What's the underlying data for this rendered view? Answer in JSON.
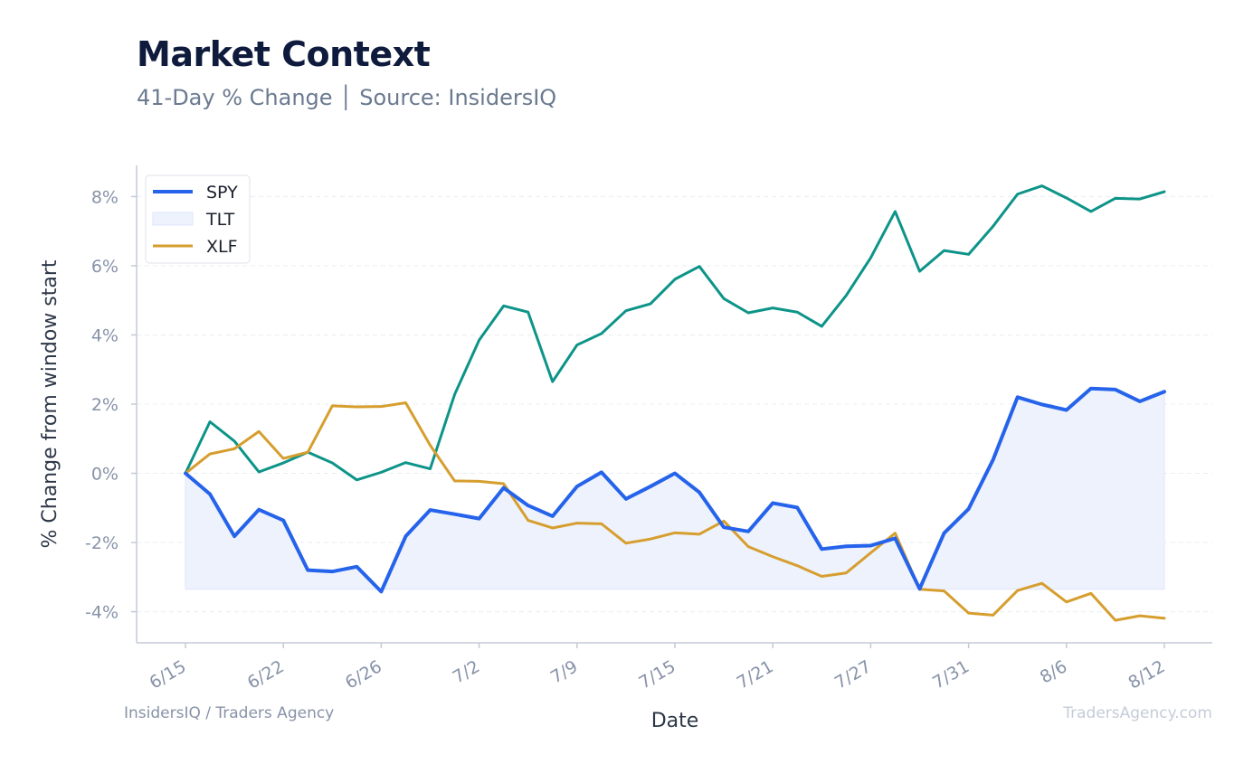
{
  "header": {
    "title": "Market Context",
    "subtitle": "41-Day % Change │ Source: InsidersIQ"
  },
  "footer": {
    "left": "InsidersIQ / Traders Agency",
    "right": "TradersAgency.com"
  },
  "colors": {
    "spy": "#2563eb",
    "tlt": "#0d9488",
    "xlf": "#d69e2e",
    "fill": "#eef2fd",
    "grid": "#e8ecf2",
    "axis": "#c3cad6"
  },
  "chart_data": {
    "type": "line",
    "xlabel": "Date",
    "ylabel": "% Change from window start",
    "ylim": [
      -4.9,
      8.9
    ],
    "yticks": [
      -4,
      -2,
      0,
      2,
      4,
      6,
      8
    ],
    "ytick_labels": [
      "-4%",
      "-2%",
      "0%",
      "2%",
      "4%",
      "6%",
      "8%"
    ],
    "xtick_labels": [
      "6/15",
      "6/22",
      "6/26",
      "7/2",
      "7/9",
      "7/15",
      "7/21",
      "7/27",
      "7/31",
      "8/6",
      "8/12"
    ],
    "xtick_index": [
      0,
      4,
      8,
      12,
      16,
      20,
      24,
      28,
      32,
      36,
      40
    ],
    "grid": true,
    "legend": {
      "placement": "top-left",
      "entries": [
        "SPY",
        "TLT",
        "XLF"
      ]
    },
    "fill_baseline": -3.35,
    "series": [
      {
        "name": "SPY",
        "values": [
          0.0,
          -0.6,
          -1.82,
          -1.05,
          -1.36,
          -2.8,
          -2.84,
          -2.7,
          -3.42,
          -1.82,
          -1.06,
          -1.18,
          -1.31,
          -0.42,
          -0.93,
          -1.24,
          -0.38,
          0.03,
          -0.74,
          -0.38,
          0.0,
          -0.55,
          -1.56,
          -1.68,
          -0.86,
          -0.99,
          -2.19,
          -2.11,
          -2.09,
          -1.88,
          -3.34,
          -1.73,
          -1.03,
          0.39,
          2.2,
          1.99,
          1.83,
          2.45,
          2.42,
          2.08,
          2.36
        ]
      },
      {
        "name": "TLT",
        "values": [
          0.0,
          1.49,
          0.93,
          0.04,
          0.3,
          0.61,
          0.3,
          -0.19,
          0.03,
          0.31,
          0.13,
          2.28,
          3.85,
          4.84,
          4.66,
          2.65,
          3.71,
          4.04,
          4.7,
          4.9,
          5.61,
          5.98,
          5.05,
          4.64,
          4.78,
          4.66,
          4.25,
          5.14,
          6.23,
          7.57,
          5.84,
          6.44,
          6.33,
          7.14,
          8.07,
          8.31,
          7.96,
          7.57,
          7.95,
          7.93,
          8.14
        ]
      },
      {
        "name": "XLF",
        "values": [
          0.0,
          0.56,
          0.71,
          1.21,
          0.43,
          0.61,
          1.95,
          1.92,
          1.93,
          2.04,
          0.81,
          -0.22,
          -0.23,
          -0.3,
          -1.36,
          -1.58,
          -1.44,
          -1.46,
          -2.02,
          -1.9,
          -1.72,
          -1.76,
          -1.38,
          -2.12,
          -2.41,
          -2.67,
          -2.98,
          -2.88,
          -2.3,
          -1.73,
          -3.35,
          -3.4,
          -4.04,
          -4.1,
          -3.39,
          -3.18,
          -3.72,
          -3.47,
          -4.25,
          -4.12,
          -4.19
        ]
      }
    ]
  }
}
